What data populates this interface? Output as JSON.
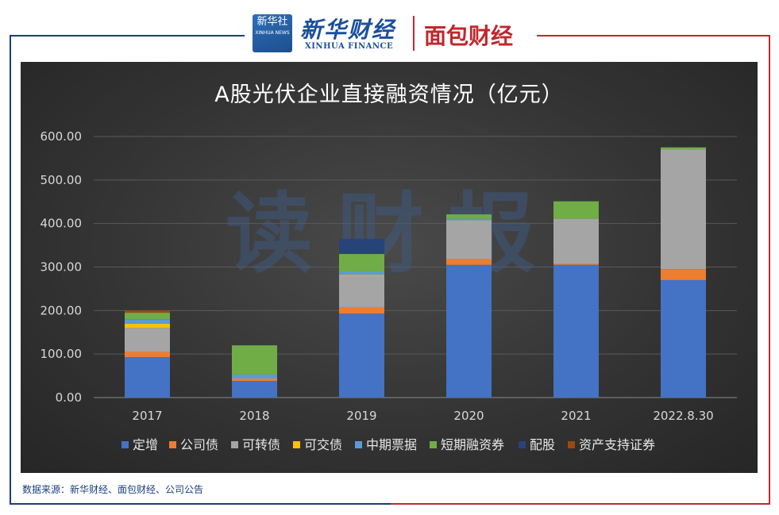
{
  "header": {
    "logo_text": "新华社",
    "logo_subtext": "XINHUA NEWS",
    "brand_cn": "新华财经",
    "brand_en": "XINHUA FINANCE",
    "partner_brand": "面包财经"
  },
  "watermark": "读财报",
  "source_note": "数据来源：新华财经、面包财经、公司公告",
  "colors": {
    "navy": "#1a3f7c",
    "red": "#c0282e",
    "series": [
      "#4472c4",
      "#ed7d31",
      "#a5a5a5",
      "#ffc000",
      "#5b9bd5",
      "#70ad47",
      "#264478",
      "#9e480e"
    ]
  },
  "chart_data": {
    "type": "bar",
    "stacked": true,
    "title": "A股光伏企业直接融资情况（亿元）",
    "categories": [
      "2017",
      "2018",
      "2019",
      "2020",
      "2021",
      "2022.8.30"
    ],
    "ylim": [
      0,
      600
    ],
    "yticks": [
      "0.00",
      "100.00",
      "200.00",
      "300.00",
      "400.00",
      "500.00",
      "600.00"
    ],
    "grid": true,
    "legend_position": "bottom",
    "series": [
      {
        "name": "定增",
        "values": [
          93,
          38,
          193,
          305,
          305,
          270
        ]
      },
      {
        "name": "公司债",
        "values": [
          12,
          5,
          15,
          13,
          2,
          25
        ]
      },
      {
        "name": "可转债",
        "values": [
          55,
          2,
          72,
          90,
          104,
          275
        ]
      },
      {
        "name": "可交债",
        "values": [
          10,
          0,
          2,
          0,
          0,
          0
        ]
      },
      {
        "name": "中期票据",
        "values": [
          10,
          8,
          8,
          3,
          0,
          0
        ]
      },
      {
        "name": "短期融资券",
        "values": [
          15,
          67,
          40,
          10,
          40,
          5
        ]
      },
      {
        "name": "配股",
        "values": [
          0,
          0,
          35,
          0,
          0,
          0
        ]
      },
      {
        "name": "资产支持证券",
        "values": [
          5,
          0,
          0,
          0,
          0,
          0
        ]
      }
    ]
  }
}
